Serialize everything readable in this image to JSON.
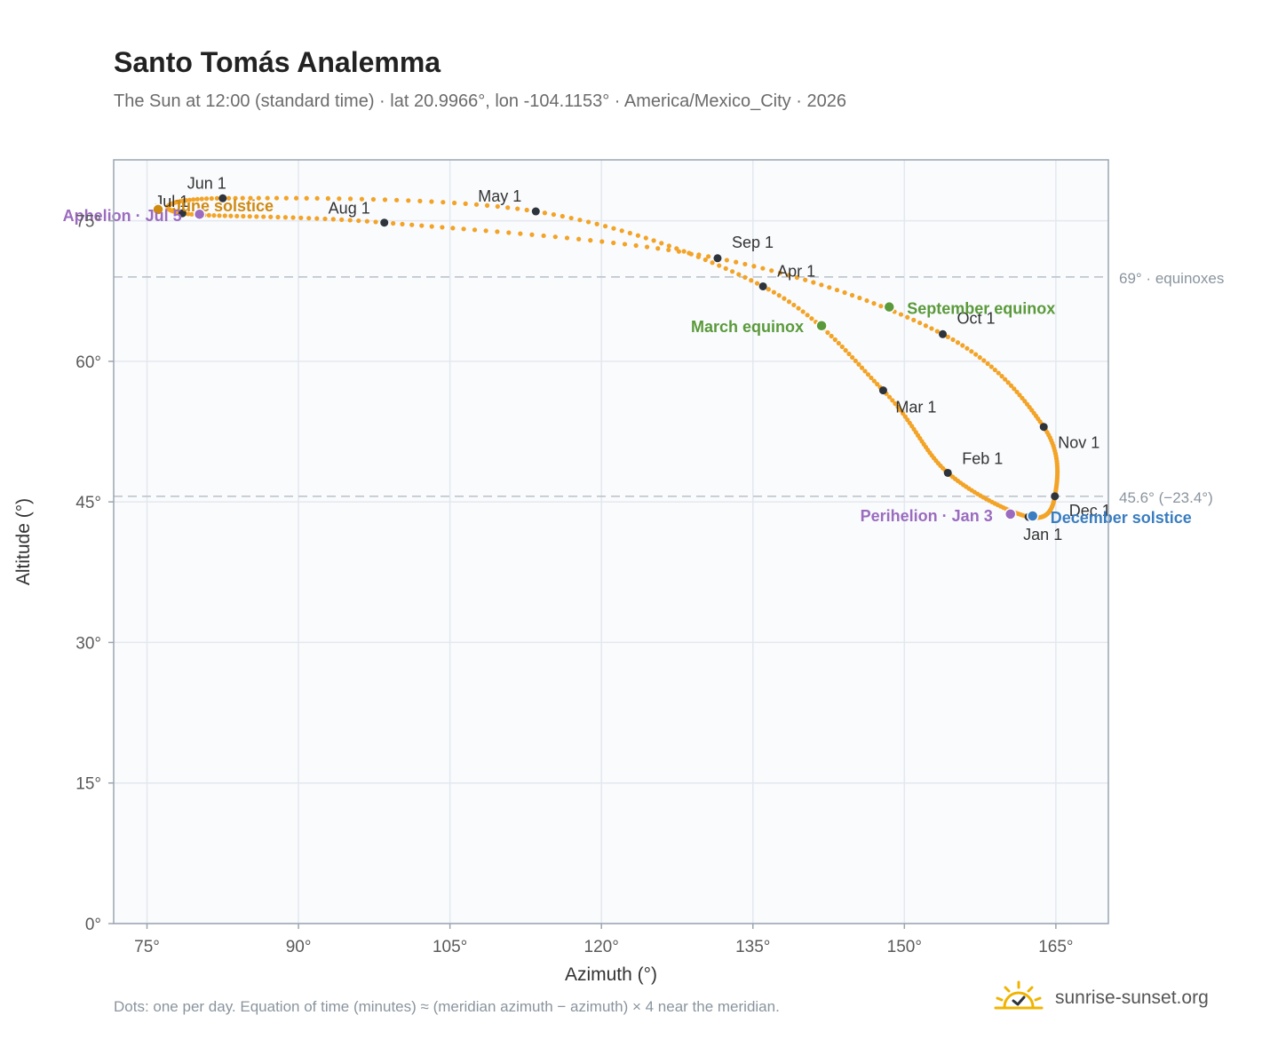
{
  "header": {
    "title": "Santo Tomás Analemma",
    "subtitle": "The Sun at 12:00 (standard time) · lat 20.9966°, lon -104.1153° · America/Mexico_City · 2026"
  },
  "footer": {
    "note": "Dots: one per day. Equation of time (minutes) ≈ (meridian azimuth − azimuth) × 4 near the meridian.",
    "brand": "sunrise-sunset.org",
    "brand_icon": "sun-check-icon"
  },
  "colors": {
    "path": "#f3a326",
    "month_dot": "#2e343b",
    "equinox": "#5a9a3a",
    "june_solstice": "#cf8a12",
    "december_solstice": "#3a7dc0",
    "apsis": "#9b6bbf",
    "plot_bg": "#f9fbfd",
    "grid": "#e4e8ee",
    "frame": "#9aa5b1",
    "reference": "#b9c0c8"
  },
  "chart_data": {
    "type": "scatter",
    "xlabel": "Azimuth (°)",
    "ylabel": "Altitude (°)",
    "xlim": [
      71.7,
      170.2
    ],
    "ylim": [
      0,
      81.5
    ],
    "xticks": [
      75,
      90,
      105,
      120,
      135,
      150,
      165
    ],
    "xtick_labels": [
      "75°",
      "90°",
      "105°",
      "120°",
      "135°",
      "150°",
      "165°"
    ],
    "yticks": [
      0,
      15,
      30,
      45,
      60,
      75
    ],
    "ytick_labels": [
      "0°",
      "15°",
      "30°",
      "45°",
      "60°",
      "75°"
    ],
    "grid": true,
    "legend": "none",
    "daily_path_months": [
      {
        "label": "Jan 1",
        "az": 162.3,
        "alt": 43.4
      },
      {
        "label": "Feb 1",
        "az": 154.3,
        "alt": 48.1
      },
      {
        "label": "Mar 1",
        "az": 147.9,
        "alt": 56.9
      },
      {
        "label": "Apr 1",
        "az": 136.0,
        "alt": 68.0
      },
      {
        "label": "May 1",
        "az": 113.5,
        "alt": 76.0
      },
      {
        "label": "Jun 1",
        "az": 82.5,
        "alt": 77.4
      },
      {
        "label": "Jul 1",
        "az": 78.5,
        "alt": 75.8
      },
      {
        "label": "Aug 1",
        "az": 98.5,
        "alt": 74.8
      },
      {
        "label": "Sep 1",
        "az": 131.5,
        "alt": 71.0
      },
      {
        "label": "Oct 1",
        "az": 153.8,
        "alt": 62.9
      },
      {
        "label": "Nov 1",
        "az": 163.8,
        "alt": 53.0
      },
      {
        "label": "Dec 1",
        "az": 164.9,
        "alt": 45.6
      },
      {
        "label": "Jan 1",
        "az": 162.3,
        "alt": 43.4
      }
    ],
    "events": [
      {
        "label": "March equinox",
        "az": 141.8,
        "alt": 63.8,
        "color_key": "equinox"
      },
      {
        "label": "September equinox",
        "az": 148.5,
        "alt": 65.8,
        "color_key": "equinox"
      },
      {
        "label": "June solstice",
        "az": 76.1,
        "alt": 76.2,
        "color_key": "june_solstice"
      },
      {
        "label": "December solstice",
        "az": 162.7,
        "alt": 43.5,
        "color_key": "december_solstice"
      },
      {
        "label": "Aphelion · Jul 5",
        "az": 80.2,
        "alt": 75.7,
        "color_key": "apsis"
      },
      {
        "label": "Perihelion · Jan 3",
        "az": 160.5,
        "alt": 43.7,
        "color_key": "apsis"
      }
    ],
    "reference_lines": [
      {
        "label": "69° · equinoxes",
        "alt": 69.0
      },
      {
        "label": "45.6° (−23.4°)",
        "alt": 45.6
      }
    ]
  }
}
